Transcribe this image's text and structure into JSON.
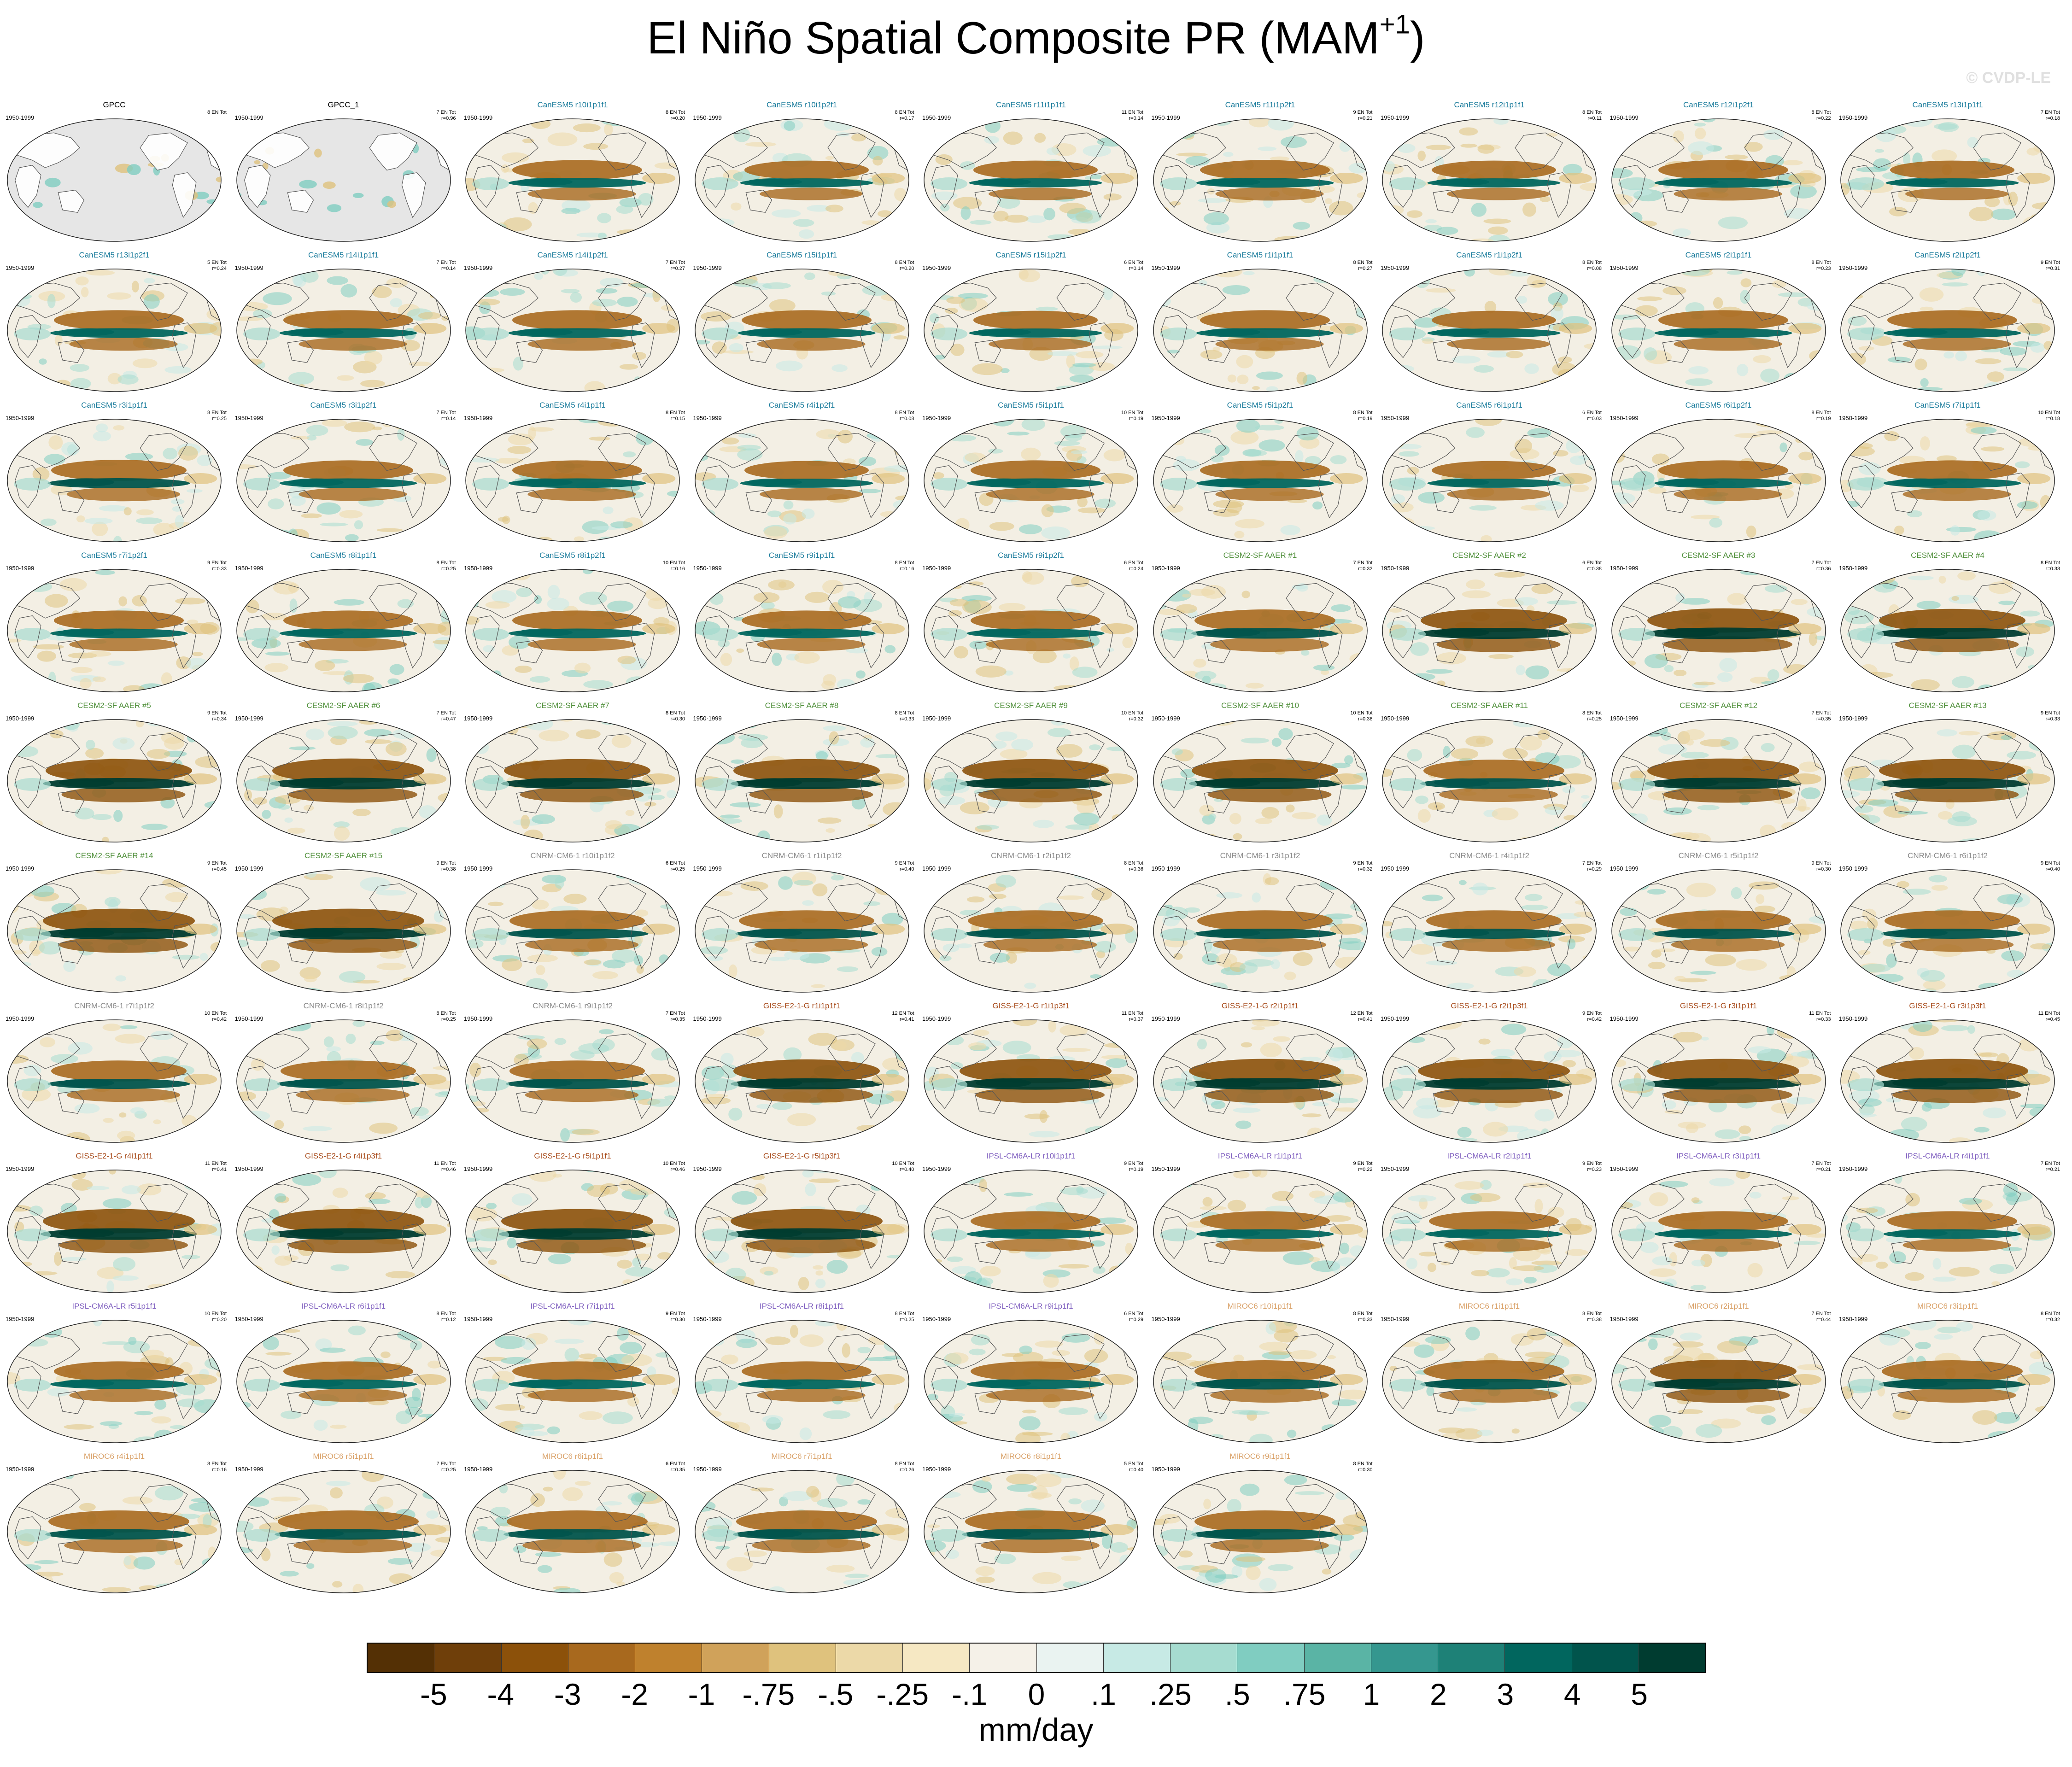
{
  "title": {
    "main": "El Niño Spatial Composite PR (MAM",
    "sup": "+1",
    "close": ")"
  },
  "watermark": "© CVDP-LE",
  "colors": {
    "canesm5": "#1b7c9c",
    "cesm2": "#4f8f3a",
    "cnrm": "#8a8a8a",
    "giss": "#a84c1c",
    "ipsl": "#8060c0",
    "miroc": "#d9a066",
    "obs": "#000000"
  },
  "panels": [
    {
      "title": "GPCC",
      "period": "1950-1999",
      "count": "8 EN Tot",
      "r": "",
      "group": "obs",
      "strength": 0
    },
    {
      "title": "GPCC_1",
      "period": "1950-1999",
      "count": "7 EN Tot",
      "r": "r=0.96",
      "group": "obs",
      "strength": 0
    },
    {
      "title": "CanESM5 r10i1p1f1",
      "period": "1950-1999",
      "count": "8 EN Tot",
      "r": "r=0.20",
      "group": "canesm5",
      "strength": 0.6
    },
    {
      "title": "CanESM5 r10i1p2f1",
      "period": "1950-1999",
      "count": "8 EN Tot",
      "r": "r=0.17",
      "group": "canesm5",
      "strength": 0.5
    },
    {
      "title": "CanESM5 r11i1p1f1",
      "period": "1950-1999",
      "count": "11 EN Tot",
      "r": "r=0.14",
      "group": "canesm5",
      "strength": 0.5
    },
    {
      "title": "CanESM5 r11i1p2f1",
      "period": "1950-1999",
      "count": "9 EN Tot",
      "r": "r=0.21",
      "group": "canesm5",
      "strength": 0.6
    },
    {
      "title": "CanESM5 r12i1p1f1",
      "period": "1950-1999",
      "count": "8 EN Tot",
      "r": "r=0.11",
      "group": "canesm5",
      "strength": 0.5
    },
    {
      "title": "CanESM5 r12i1p2f1",
      "period": "1950-1999",
      "count": "8 EN Tot",
      "r": "r=0.22",
      "group": "canesm5",
      "strength": 0.6
    },
    {
      "title": "CanESM5 r13i1p1f1",
      "period": "1950-1999",
      "count": "7 EN Tot",
      "r": "r=0.18",
      "group": "canesm5",
      "strength": 0.5
    },
    {
      "title": "CanESM5 r13i1p2f1",
      "period": "1950-1999",
      "count": "5 EN Tot",
      "r": "r=0.24",
      "group": "canesm5",
      "strength": 0.6
    },
    {
      "title": "CanESM5 r14i1p1f1",
      "period": "1950-1999",
      "count": "7 EN Tot",
      "r": "r=0.14",
      "group": "canesm5",
      "strength": 0.6
    },
    {
      "title": "CanESM5 r14i1p2f1",
      "period": "1950-1999",
      "count": "7 EN Tot",
      "r": "r=0.27",
      "group": "canesm5",
      "strength": 0.6
    },
    {
      "title": "CanESM5 r15i1p1f1",
      "period": "1950-1999",
      "count": "8 EN Tot",
      "r": "r=0.20",
      "group": "canesm5",
      "strength": 0.6
    },
    {
      "title": "CanESM5 r15i1p2f1",
      "period": "1950-1999",
      "count": "6 EN Tot",
      "r": "r=0.14",
      "group": "canesm5",
      "strength": 0.5
    },
    {
      "title": "CanESM5 r1i1p1f1",
      "period": "1950-1999",
      "count": "8 EN Tot",
      "r": "r=0.27",
      "group": "canesm5",
      "strength": 0.6
    },
    {
      "title": "CanESM5 r1i1p2f1",
      "period": "1950-1999",
      "count": "8 EN Tot",
      "r": "r=0.08",
      "group": "canesm5",
      "strength": 0.5
    },
    {
      "title": "CanESM5 r2i1p1f1",
      "period": "1950-1999",
      "count": "8 EN Tot",
      "r": "r=0.23",
      "group": "canesm5",
      "strength": 0.6
    },
    {
      "title": "CanESM5 r2i1p2f1",
      "period": "1950-1999",
      "count": "9 EN Tot",
      "r": "r=0.31",
      "group": "canesm5",
      "strength": 0.6
    },
    {
      "title": "CanESM5 r3i1p1f1",
      "period": "1950-1999",
      "count": "8 EN Tot",
      "r": "r=0.25",
      "group": "canesm5",
      "strength": 0.7
    },
    {
      "title": "CanESM5 r3i1p2f1",
      "period": "1950-1999",
      "count": "7 EN Tot",
      "r": "r=0.14",
      "group": "canesm5",
      "strength": 0.6
    },
    {
      "title": "CanESM5 r4i1p1f1",
      "period": "1950-1999",
      "count": "8 EN Tot",
      "r": "r=0.15",
      "group": "canesm5",
      "strength": 0.6
    },
    {
      "title": "CanESM5 r4i1p2f1",
      "period": "1950-1999",
      "count": "8 EN Tot",
      "r": "r=0.08",
      "group": "canesm5",
      "strength": 0.5
    },
    {
      "title": "CanESM5 r5i1p1f1",
      "period": "1950-1999",
      "count": "10 EN Tot",
      "r": "r=0.19",
      "group": "canesm5",
      "strength": 0.6
    },
    {
      "title": "CanESM5 r5i1p2f1",
      "period": "1950-1999",
      "count": "8 EN Tot",
      "r": "r=0.19",
      "group": "canesm5",
      "strength": 0.6
    },
    {
      "title": "CanESM5 r6i1p1f1",
      "period": "1950-1999",
      "count": "6 EN Tot",
      "r": "r=0.03",
      "group": "canesm5",
      "strength": 0.5
    },
    {
      "title": "CanESM5 r6i1p2f1",
      "period": "1950-1999",
      "count": "8 EN Tot",
      "r": "r=0.19",
      "group": "canesm5",
      "strength": 0.6
    },
    {
      "title": "CanESM5 r7i1p1f1",
      "period": "1950-1999",
      "count": "10 EN Tot",
      "r": "r=0.18",
      "group": "canesm5",
      "strength": 0.6
    },
    {
      "title": "CanESM5 r7i1p2f1",
      "period": "1950-1999",
      "count": "9 EN Tot",
      "r": "r=0.33",
      "group": "canesm5",
      "strength": 0.6
    },
    {
      "title": "CanESM5 r8i1p1f1",
      "period": "1950-1999",
      "count": "8 EN Tot",
      "r": "r=0.25",
      "group": "canesm5",
      "strength": 0.6
    },
    {
      "title": "CanESM5 r8i1p2f1",
      "period": "1950-1999",
      "count": "10 EN Tot",
      "r": "r=0.16",
      "group": "canesm5",
      "strength": 0.6
    },
    {
      "title": "CanESM5 r9i1p1f1",
      "period": "1950-1999",
      "count": "8 EN Tot",
      "r": "r=0.16",
      "group": "canesm5",
      "strength": 0.6
    },
    {
      "title": "CanESM5 r9i1p2f1",
      "period": "1950-1999",
      "count": "6 EN Tot",
      "r": "r=0.24",
      "group": "canesm5",
      "strength": 0.6
    },
    {
      "title": "CESM2-SF AAER #1",
      "period": "1950-1999",
      "count": "7 EN Tot",
      "r": "r=0.32",
      "group": "cesm2",
      "strength": 0.8
    },
    {
      "title": "CESM2-SF AAER #2",
      "period": "1950-1999",
      "count": "6 EN Tot",
      "r": "r=0.38",
      "group": "cesm2",
      "strength": 0.9
    },
    {
      "title": "CESM2-SF AAER #3",
      "period": "1950-1999",
      "count": "7 EN Tot",
      "r": "r=0.36",
      "group": "cesm2",
      "strength": 1.0
    },
    {
      "title": "CESM2-SF AAER #4",
      "period": "1950-1999",
      "count": "8 EN Tot",
      "r": "r=0.33",
      "group": "cesm2",
      "strength": 0.9
    },
    {
      "title": "CESM2-SF AAER #5",
      "period": "1950-1999",
      "count": "9 EN Tot",
      "r": "r=0.34",
      "group": "cesm2",
      "strength": 0.9
    },
    {
      "title": "CESM2-SF AAER #6",
      "period": "1950-1999",
      "count": "7 EN Tot",
      "r": "r=0.47",
      "group": "cesm2",
      "strength": 1.0
    },
    {
      "title": "CESM2-SF AAER #7",
      "period": "1950-1999",
      "count": "8 EN Tot",
      "r": "r=0.30",
      "group": "cesm2",
      "strength": 0.9
    },
    {
      "title": "CESM2-SF AAER #8",
      "period": "1950-1999",
      "count": "8 EN Tot",
      "r": "r=0.33",
      "group": "cesm2",
      "strength": 0.9
    },
    {
      "title": "CESM2-SF AAER #9",
      "period": "1950-1999",
      "count": "10 EN Tot",
      "r": "r=0.32",
      "group": "cesm2",
      "strength": 0.9
    },
    {
      "title": "CESM2-SF AAER #10",
      "period": "1950-1999",
      "count": "10 EN Tot",
      "r": "r=0.36",
      "group": "cesm2",
      "strength": 0.9
    },
    {
      "title": "CESM2-SF AAER #11",
      "period": "1950-1999",
      "count": "8 EN Tot",
      "r": "r=0.25",
      "group": "cesm2",
      "strength": 0.8
    },
    {
      "title": "CESM2-SF AAER #12",
      "period": "1950-1999",
      "count": "7 EN Tot",
      "r": "r=0.35",
      "group": "cesm2",
      "strength": 1.0
    },
    {
      "title": "CESM2-SF AAER #13",
      "period": "1950-1999",
      "count": "9 EN Tot",
      "r": "r=0.33",
      "group": "cesm2",
      "strength": 0.9
    },
    {
      "title": "CESM2-SF AAER #14",
      "period": "1950-1999",
      "count": "9 EN Tot",
      "r": "r=0.45",
      "group": "cesm2",
      "strength": 1.0
    },
    {
      "title": "CESM2-SF AAER #15",
      "period": "1950-1999",
      "count": "9 EN Tot",
      "r": "r=0.38",
      "group": "cesm2",
      "strength": 1.0
    },
    {
      "title": "CNRM-CM6-1 r10i1p1f2",
      "period": "1950-1999",
      "count": "6 EN Tot",
      "r": "r=0.25",
      "group": "cnrm",
      "strength": 0.7
    },
    {
      "title": "CNRM-CM6-1 r1i1p1f2",
      "period": "1950-1999",
      "count": "9 EN Tot",
      "r": "r=0.40",
      "group": "cnrm",
      "strength": 0.7
    },
    {
      "title": "CNRM-CM6-1 r2i1p1f2",
      "period": "1950-1999",
      "count": "8 EN Tot",
      "r": "r=0.36",
      "group": "cnrm",
      "strength": 0.7
    },
    {
      "title": "CNRM-CM6-1 r3i1p1f2",
      "period": "1950-1999",
      "count": "9 EN Tot",
      "r": "r=0.32",
      "group": "cnrm",
      "strength": 0.7
    },
    {
      "title": "CNRM-CM6-1 r4i1p1f2",
      "period": "1950-1999",
      "count": "7 EN Tot",
      "r": "r=0.29",
      "group": "cnrm",
      "strength": 0.7
    },
    {
      "title": "CNRM-CM6-1 r5i1p1f2",
      "period": "1950-1999",
      "count": "9 EN Tot",
      "r": "r=0.30",
      "group": "cnrm",
      "strength": 0.7
    },
    {
      "title": "CNRM-CM6-1 r6i1p1f2",
      "period": "1950-1999",
      "count": "9 EN Tot",
      "r": "r=0.40",
      "group": "cnrm",
      "strength": 0.7
    },
    {
      "title": "CNRM-CM6-1 r7i1p1f2",
      "period": "1950-1999",
      "count": "10 EN Tot",
      "r": "r=0.42",
      "group": "cnrm",
      "strength": 0.7
    },
    {
      "title": "CNRM-CM6-1 r8i1p1f2",
      "period": "1950-1999",
      "count": "8 EN Tot",
      "r": "r=0.25",
      "group": "cnrm",
      "strength": 0.7
    },
    {
      "title": "CNRM-CM6-1 r9i1p1f2",
      "period": "1950-1999",
      "count": "7 EN Tot",
      "r": "r=0.35",
      "group": "cnrm",
      "strength": 0.7
    },
    {
      "title": "GISS-E2-1-G r1i1p1f1",
      "period": "1950-1999",
      "count": "12 EN Tot",
      "r": "r=0.41",
      "group": "giss",
      "strength": 0.9
    },
    {
      "title": "GISS-E2-1-G r1i1p3f1",
      "period": "1950-1999",
      "count": "11 EN Tot",
      "r": "r=0.37",
      "group": "giss",
      "strength": 1.0
    },
    {
      "title": "GISS-E2-1-G r2i1p1f1",
      "period": "1950-1999",
      "count": "12 EN Tot",
      "r": "r=0.41",
      "group": "giss",
      "strength": 1.0
    },
    {
      "title": "GISS-E2-1-G r2i1p3f1",
      "period": "1950-1999",
      "count": "9 EN Tot",
      "r": "r=0.42",
      "group": "giss",
      "strength": 1.0
    },
    {
      "title": "GISS-E2-1-G r3i1p1f1",
      "period": "1950-1999",
      "count": "11 EN Tot",
      "r": "r=0.33",
      "group": "giss",
      "strength": 1.0
    },
    {
      "title": "GISS-E2-1-G r3i1p3f1",
      "period": "1950-1999",
      "count": "11 EN Tot",
      "r": "r=0.45",
      "group": "giss",
      "strength": 1.0
    },
    {
      "title": "GISS-E2-1-G r4i1p1f1",
      "period": "1950-1999",
      "count": "11 EN Tot",
      "r": "r=0.41",
      "group": "giss",
      "strength": 1.0
    },
    {
      "title": "GISS-E2-1-G r4i1p3f1",
      "period": "1950-1999",
      "count": "11 EN Tot",
      "r": "r=0.46",
      "group": "giss",
      "strength": 1.0
    },
    {
      "title": "GISS-E2-1-G r5i1p1f1",
      "period": "1950-1999",
      "count": "10 EN Tot",
      "r": "r=0.46",
      "group": "giss",
      "strength": 1.0
    },
    {
      "title": "GISS-E2-1-G r5i1p3f1",
      "period": "1950-1999",
      "count": "10 EN Tot",
      "r": "r=0.40",
      "group": "giss",
      "strength": 1.0
    },
    {
      "title": "IPSL-CM6A-LR r10i1p1f1",
      "period": "1950-1999",
      "count": "9 EN Tot",
      "r": "r=0.19",
      "group": "ipsl",
      "strength": 0.6
    },
    {
      "title": "IPSL-CM6A-LR r1i1p1f1",
      "period": "1950-1999",
      "count": "9 EN Tot",
      "r": "r=0.22",
      "group": "ipsl",
      "strength": 0.6
    },
    {
      "title": "IPSL-CM6A-LR r2i1p1f1",
      "period": "1950-1999",
      "count": "9 EN Tot",
      "r": "r=0.23",
      "group": "ipsl",
      "strength": 0.6
    },
    {
      "title": "IPSL-CM6A-LR r3i1p1f1",
      "period": "1950-1999",
      "count": "7 EN Tot",
      "r": "r=0.21",
      "group": "ipsl",
      "strength": 0.6
    },
    {
      "title": "IPSL-CM6A-LR r4i1p1f1",
      "period": "1950-1999",
      "count": "7 EN Tot",
      "r": "r=0.21",
      "group": "ipsl",
      "strength": 0.6
    },
    {
      "title": "IPSL-CM6A-LR r5i1p1f1",
      "period": "1950-1999",
      "count": "10 EN Tot",
      "r": "r=0.20",
      "group": "ipsl",
      "strength": 0.6
    },
    {
      "title": "IPSL-CM6A-LR r6i1p1f1",
      "period": "1950-1999",
      "count": "8 EN Tot",
      "r": "r=0.12",
      "group": "ipsl",
      "strength": 0.6
    },
    {
      "title": "IPSL-CM6A-LR r7i1p1f1",
      "period": "1950-1999",
      "count": "9 EN Tot",
      "r": "r=0.30",
      "group": "ipsl",
      "strength": 0.6
    },
    {
      "title": "IPSL-CM6A-LR r8i1p1f1",
      "period": "1950-1999",
      "count": "8 EN Tot",
      "r": "r=0.25",
      "group": "ipsl",
      "strength": 0.6
    },
    {
      "title": "IPSL-CM6A-LR r9i1p1f1",
      "period": "1950-1999",
      "count": "6 EN Tot",
      "r": "r=0.29",
      "group": "ipsl",
      "strength": 0.6
    },
    {
      "title": "MIROC6 r10i1p1f1",
      "period": "1950-1999",
      "count": "8 EN Tot",
      "r": "r=0.33",
      "group": "miroc",
      "strength": 0.8
    },
    {
      "title": "MIROC6 r1i1p1f1",
      "period": "1950-1999",
      "count": "8 EN Tot",
      "r": "r=0.38",
      "group": "miroc",
      "strength": 0.8
    },
    {
      "title": "MIROC6 r2i1p1f1",
      "period": "1950-1999",
      "count": "7 EN Tot",
      "r": "r=0.44",
      "group": "miroc",
      "strength": 0.9
    },
    {
      "title": "MIROC6 r3i1p1f1",
      "period": "1950-1999",
      "count": "8 EN Tot",
      "r": "r=0.32",
      "group": "miroc",
      "strength": 0.8
    },
    {
      "title": "MIROC6 r4i1p1f1",
      "period": "1950-1999",
      "count": "8 EN Tot",
      "r": "r=0.16",
      "group": "miroc",
      "strength": 0.8
    },
    {
      "title": "MIROC6 r5i1p1f1",
      "period": "1950-1999",
      "count": "7 EN Tot",
      "r": "r=0.25",
      "group": "miroc",
      "strength": 0.8
    },
    {
      "title": "MIROC6 r6i1p1f1",
      "period": "1950-1999",
      "count": "6 EN Tot",
      "r": "r=0.35",
      "group": "miroc",
      "strength": 0.8
    },
    {
      "title": "MIROC6 r7i1p1f1",
      "period": "1950-1999",
      "count": "8 EN Tot",
      "r": "r=0.26",
      "group": "miroc",
      "strength": 0.8
    },
    {
      "title": "MIROC6 r8i1p1f1",
      "period": "1950-1999",
      "count": "5 EN Tot",
      "r": "r=0.40",
      "group": "miroc",
      "strength": 0.8
    },
    {
      "title": "MIROC6 r9i1p1f1",
      "period": "1950-1999",
      "count": "8 EN Tot",
      "r": "r=0.30",
      "group": "miroc",
      "strength": 0.8
    }
  ],
  "colorbar": {
    "colors": [
      "#543005",
      "#6f3f0a",
      "#8c510a",
      "#a8691e",
      "#bf812d",
      "#d0a25a",
      "#dfc27d",
      "#ecd9a8",
      "#f6e8c3",
      "#f5f1e8",
      "#eaf3f1",
      "#c7eae5",
      "#a6dcd0",
      "#80cdc1",
      "#5ab4a5",
      "#35978f",
      "#1e8177",
      "#01665e",
      "#01544c",
      "#003c30"
    ],
    "ticks": [
      "-5",
      "-4",
      "-3",
      "-2",
      "-1",
      "-.75",
      "-.5",
      "-.25",
      "-.1",
      "0",
      ".1",
      ".25",
      ".5",
      ".75",
      "1",
      "2",
      "3",
      "4",
      "5"
    ],
    "units": "mm/day"
  }
}
